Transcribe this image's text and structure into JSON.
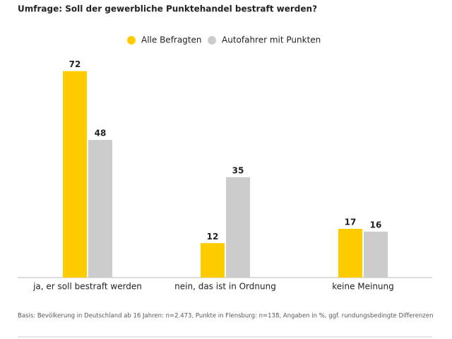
{
  "chart_data": {
    "type": "bar",
    "title": "Umfrage: Soll der gewerbliche Punktehandel bestraft werden?",
    "categories": [
      "ja, er soll bestraft werden",
      "nein, das ist in Ordnung",
      "keine Meinung"
    ],
    "series": [
      {
        "name": "Alle Befragten",
        "color": "#ffcc00",
        "values": [
          72,
          12,
          17
        ]
      },
      {
        "name": "Autofahrer mit Punkten",
        "color": "#cccccc",
        "values": [
          48,
          35,
          16
        ]
      }
    ],
    "footnote": "Basis: Bevölkerung in Deutschland ab 16 Jahren: n=2.473, Punkte in Flensburg: n=138, Angaben in %, ggf. rundungsbedingte Differenzen"
  }
}
